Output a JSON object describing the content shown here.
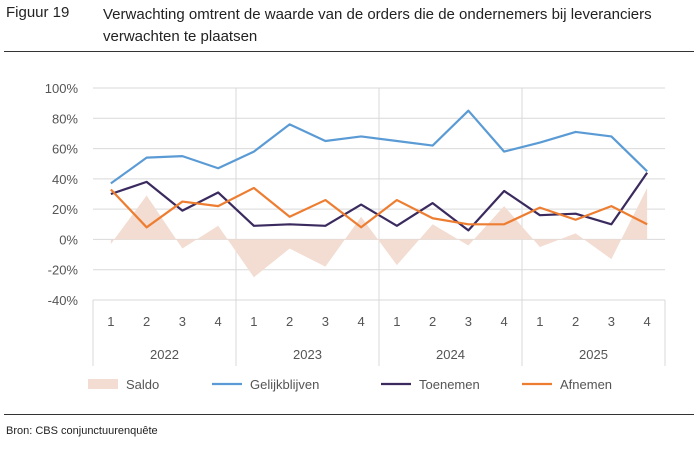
{
  "caption": {
    "number": "Figuur 19",
    "title": "Verwachting omtrent de waarde van de orders die de ondernemers bij leveranciers verwachten te plaatsen"
  },
  "source": "Bron: CBS conjunctuurenquête",
  "colors": {
    "saldo": "#f3dcd1",
    "gelijkblijven": "#5b9bd5",
    "toenemen": "#3a2a5e",
    "afnemen": "#ed7d31",
    "grid": "#d9d9d9",
    "axis_text": "#595959"
  },
  "chart_data": {
    "type": "line",
    "title": "",
    "xlabel": "",
    "ylabel": "",
    "ylim": [
      -40,
      100
    ],
    "yticks": [
      -40,
      -20,
      0,
      20,
      40,
      60,
      80,
      100
    ],
    "ytick_labels": [
      "-40%",
      "-20%",
      "0%",
      "20%",
      "40%",
      "60%",
      "80%",
      "100%"
    ],
    "categories": [
      "1",
      "2",
      "3",
      "4",
      "1",
      "2",
      "3",
      "4",
      "1",
      "2",
      "3",
      "4",
      "1",
      "2",
      "3",
      "4"
    ],
    "groups": [
      {
        "label": "2022",
        "count": 4
      },
      {
        "label": "2023",
        "count": 4
      },
      {
        "label": "2024",
        "count": 4
      },
      {
        "label": "2025",
        "count": 4
      }
    ],
    "legend_position": "bottom",
    "series": [
      {
        "name": "Saldo",
        "kind": "area",
        "values": [
          -3,
          29,
          -6,
          9,
          -25,
          -6,
          -18,
          15,
          -17,
          10,
          -4,
          22,
          -5,
          4,
          -13,
          34
        ]
      },
      {
        "name": "Gelijkblijven",
        "kind": "line",
        "values": [
          37,
          54,
          55,
          47,
          58,
          76,
          65,
          68,
          65,
          62,
          85,
          58,
          64,
          71,
          68,
          45
        ]
      },
      {
        "name": "Toenemen",
        "kind": "line",
        "values": [
          30,
          38,
          19,
          31,
          9,
          10,
          9,
          23,
          9,
          24,
          6,
          32,
          16,
          17,
          10,
          44
        ]
      },
      {
        "name": "Afnemen",
        "kind": "line",
        "values": [
          33,
          8,
          25,
          22,
          34,
          15,
          26,
          8,
          26,
          14,
          10,
          10,
          21,
          13,
          22,
          10
        ]
      }
    ]
  }
}
